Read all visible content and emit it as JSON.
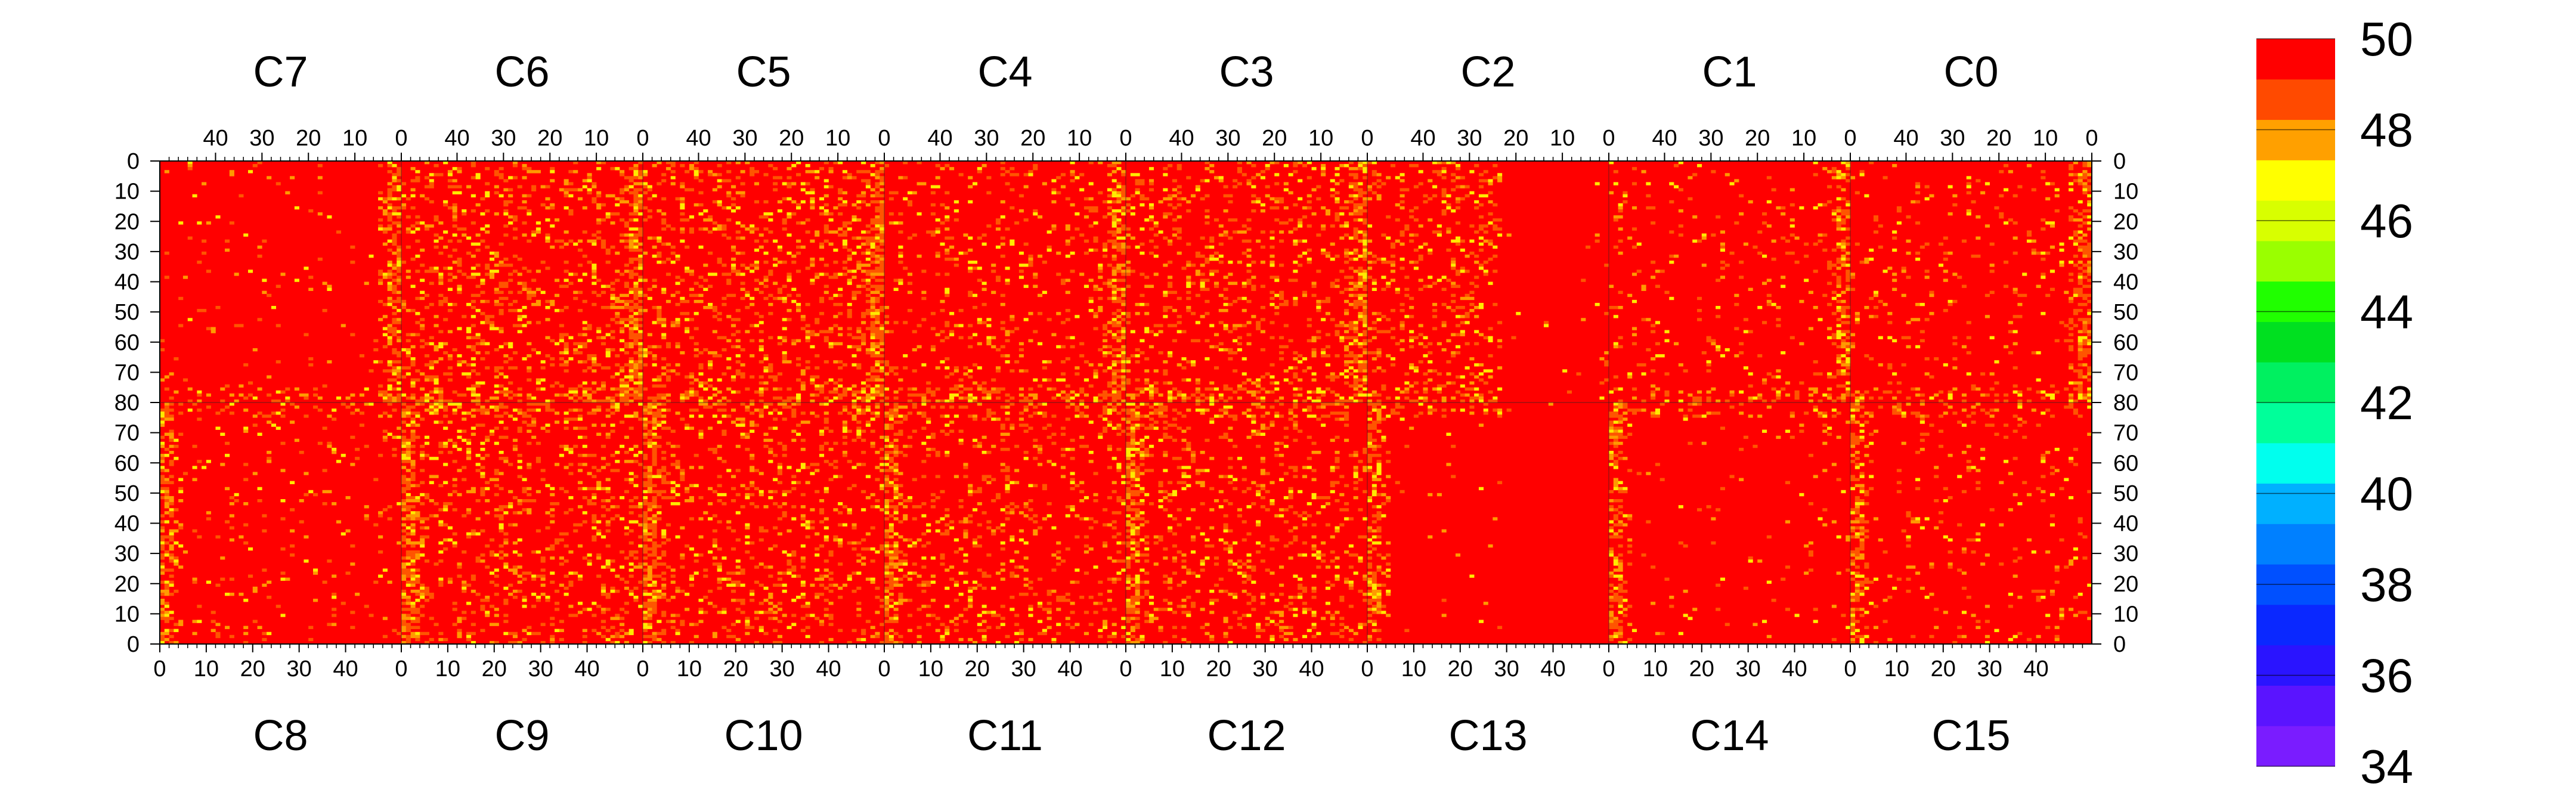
{
  "chart_data": {
    "type": "heatmap",
    "title": "",
    "colorbar": {
      "min": 34,
      "max": 50,
      "tick_labels": [
        "34",
        "36",
        "38",
        "40",
        "42",
        "44",
        "46",
        "48",
        "50"
      ],
      "levels": 16,
      "colors": [
        "#7a1cff",
        "#5a14ff",
        "#2a14ff",
        "#0a28ff",
        "#0050ff",
        "#0080ff",
        "#00b0ff",
        "#00ffee",
        "#00ff9a",
        "#00f060",
        "#00e020",
        "#20ff00",
        "#9aff00",
        "#d8ff00",
        "#ffff00",
        "#ffa000",
        "#ff4a00",
        "#ff0000"
      ]
    },
    "top_chips": [
      "C7",
      "C6",
      "C5",
      "C4",
      "C3",
      "C2",
      "C1",
      "C0"
    ],
    "bottom_chips": [
      "C8",
      "C9",
      "C10",
      "C11",
      "C12",
      "C13",
      "C14",
      "C15"
    ],
    "top_x_tick_labels": [
      "40",
      "30",
      "20",
      "10",
      "0"
    ],
    "bottom_x_tick_labels": [
      "0",
      "10",
      "20",
      "30",
      "40"
    ],
    "left_y_tick_labels": [
      "0",
      "10",
      "20",
      "30",
      "40",
      "50",
      "60",
      "70",
      "80",
      "70",
      "60",
      "50",
      "40",
      "30",
      "20",
      "10",
      "0"
    ],
    "right_y_tick_labels": [
      "0",
      "10",
      "20",
      "30",
      "40",
      "50",
      "60",
      "70",
      "80",
      "70",
      "60",
      "50",
      "40",
      "30",
      "20",
      "10",
      "0"
    ],
    "columns_per_chip": 52,
    "rows_per_half": 80,
    "dominant_value": 50,
    "chip_noise_level": {
      "C7": 0.05,
      "C6": 0.35,
      "C5": 0.35,
      "C4": 0.22,
      "C3": 0.3,
      "C2": 0.3,
      "C1": 0.1,
      "C0": 0.12,
      "C8": 0.08,
      "C9": 0.3,
      "C10": 0.3,
      "C11": 0.25,
      "C12": 0.28,
      "C13": 0.02,
      "C14": 0.05,
      "C15": 0.1
    },
    "low_value_columns_note": ""
  }
}
